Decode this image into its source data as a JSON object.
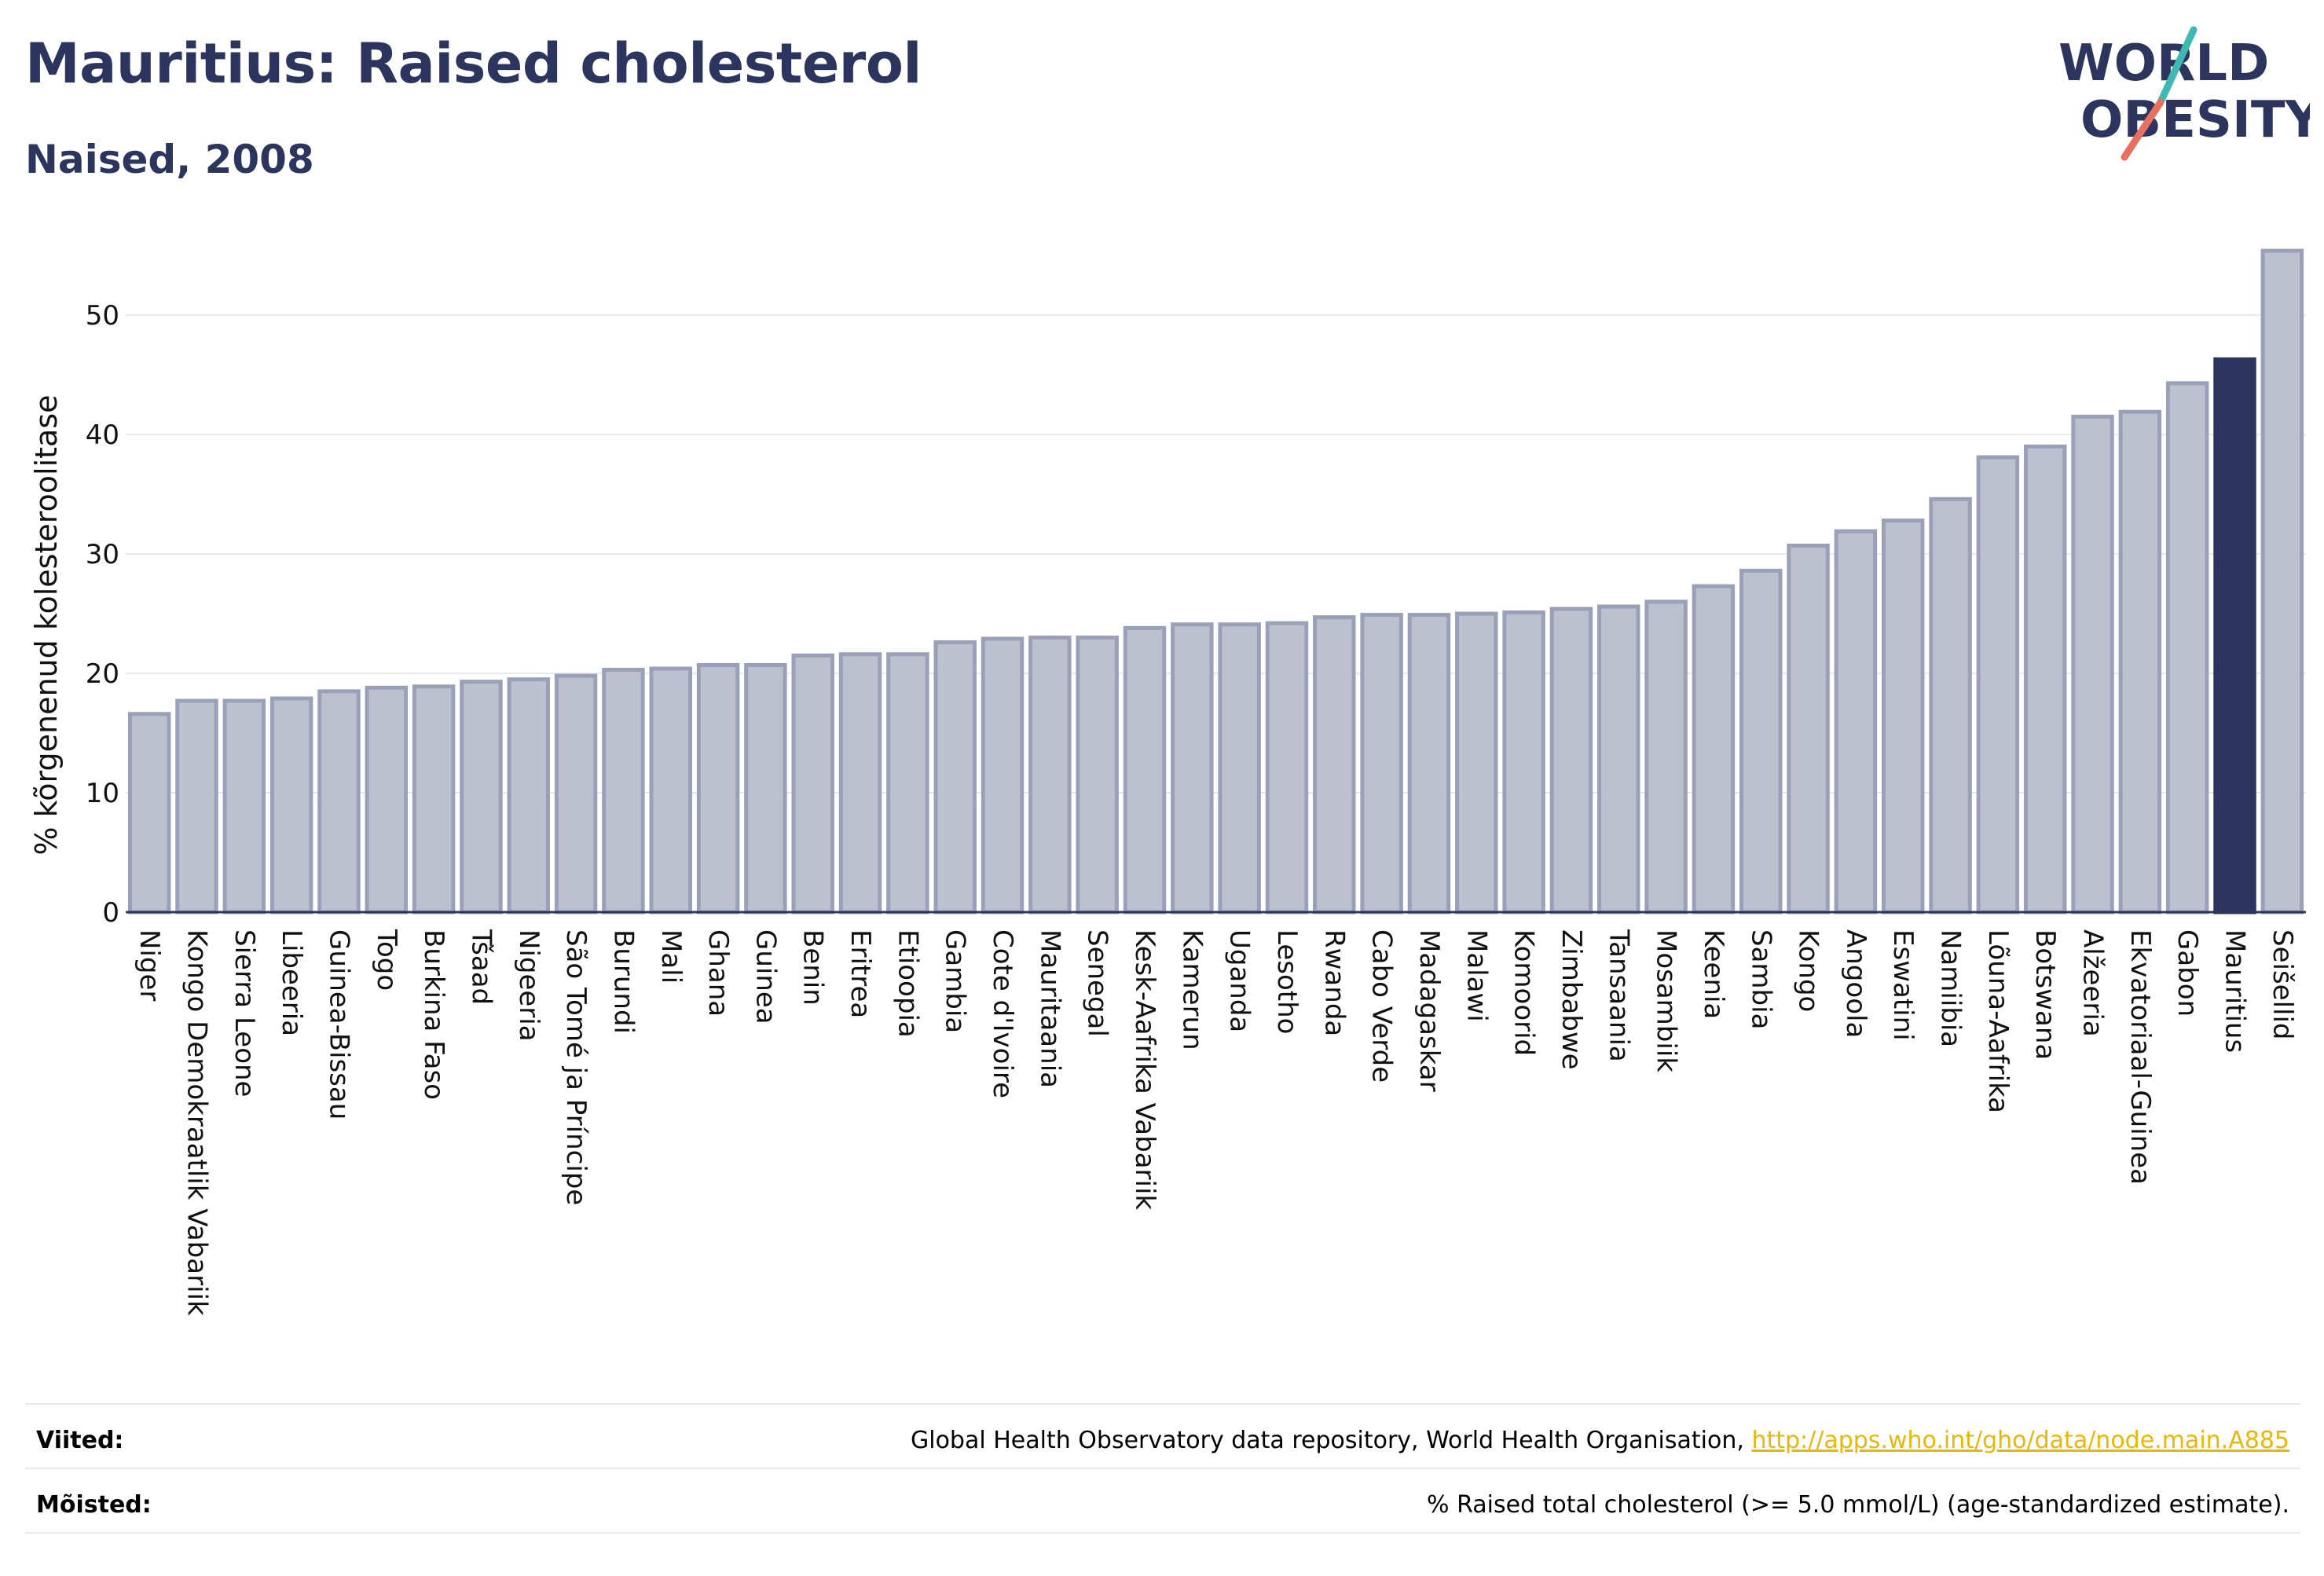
{
  "header": {
    "title": "Mauritius: Raised cholesterol",
    "subtitle": "Naised, 2008",
    "logo_line1": "WORLD",
    "logo_line2": "OBESITY"
  },
  "footer": {
    "sources_label": "Viited:",
    "sources_text": "Global Health Observatory data repository, World Health Organisation,",
    "sources_link": "http://apps.who.int/gho/data/node.main.A885",
    "definitions_label": "Mõisted:",
    "definitions_text": "% Raised total cholesterol (>= 5.0 mmol/L) (age-standardized estimate)."
  },
  "chart_data": {
    "type": "bar",
    "title": "Mauritius: Raised cholesterol",
    "subtitle": "Naised, 2008",
    "xlabel": "",
    "ylabel": "% kõrgenenud kolesteroolitase",
    "ylim": [
      0,
      56
    ],
    "yticks": [
      0,
      10,
      20,
      30,
      40,
      50
    ],
    "grid": true,
    "highlight": "Mauritius",
    "colors": {
      "bar": "#bcc0cf",
      "bar_edge": "#9aa0b8",
      "highlight": "#2b355e",
      "axis": "#2b355e",
      "grid": "#e6e8ef"
    },
    "categories": [
      "Niger",
      "Kongo Demokraatlik Vabariik",
      "Sierra Leone",
      "Libeeria",
      "Guinea-Bissau",
      "Togo",
      "Burkina Faso",
      "Tšaad",
      "Nigeeria",
      "São Tomé ja Príncipe",
      "Burundi",
      "Mali",
      "Ghana",
      "Guinea",
      "Benin",
      "Eritrea",
      "Etioopia",
      "Gambia",
      "Cote d'Ivoire",
      "Mauritaania",
      "Senegal",
      "Kesk-Aafrika Vabariik",
      "Kamerun",
      "Uganda",
      "Lesotho",
      "Rwanda",
      "Cabo Verde",
      "Madagaskar",
      "Malawi",
      "Komoorid",
      "Zimbabwe",
      "Tansaania",
      "Mosambiik",
      "Keenia",
      "Sambia",
      "Kongo",
      "Angoola",
      "Eswatini",
      "Namiibia",
      "Lõuna-Aafrika",
      "Botswana",
      "Alžeeria",
      "Ekvatoriaal-Guinea",
      "Gabon",
      "Mauritius",
      "Seišellid"
    ],
    "values": [
      16.6,
      17.7,
      17.7,
      17.9,
      18.5,
      18.8,
      18.9,
      19.3,
      19.5,
      19.8,
      20.3,
      20.4,
      20.7,
      20.7,
      21.5,
      21.6,
      21.6,
      22.6,
      22.9,
      23.0,
      23.0,
      23.8,
      24.1,
      24.1,
      24.2,
      24.7,
      24.9,
      24.9,
      25.0,
      25.1,
      25.4,
      25.6,
      26.0,
      27.3,
      28.6,
      30.7,
      31.9,
      32.8,
      34.6,
      38.1,
      39.0,
      41.5,
      41.9,
      44.3,
      46.3,
      55.4
    ]
  }
}
